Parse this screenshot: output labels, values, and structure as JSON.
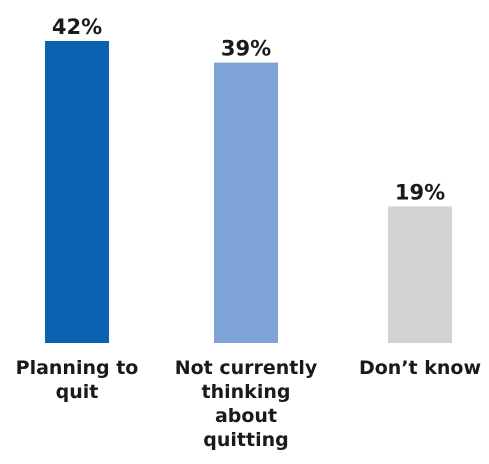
{
  "chart_data": {
    "type": "bar",
    "categories": [
      [
        "Planning to",
        "quit"
      ],
      [
        "Not currently",
        "thinking",
        "about",
        "quitting"
      ],
      [
        "Don’t know"
      ]
    ],
    "values": [
      42,
      39,
      19
    ],
    "value_labels": [
      "42%",
      "39%",
      "19%"
    ],
    "colors": [
      "#0a62b0",
      "#7fa3d6",
      "#d3d3d5"
    ],
    "ylim": [
      0,
      42
    ]
  }
}
